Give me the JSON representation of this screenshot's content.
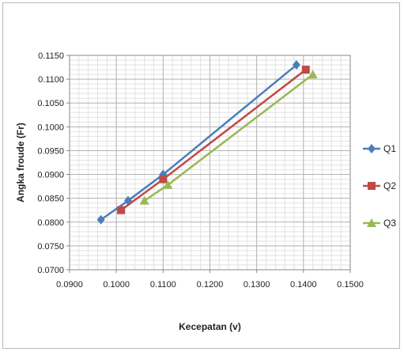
{
  "chart_data": {
    "type": "line",
    "title": "",
    "xlabel": "Kecepatan (v)",
    "ylabel": "Angka froude (Fr)",
    "xlim": [
      0.09,
      0.15
    ],
    "ylim": [
      0.07,
      0.115
    ],
    "x_ticks": [
      "0.0900",
      "0.1000",
      "0.1100",
      "0.1200",
      "0.1300",
      "0.1400",
      "0.1500"
    ],
    "y_ticks": [
      "0.0700",
      "0.0750",
      "0.0800",
      "0.0850",
      "0.0900",
      "0.0950",
      "0.1000",
      "0.1050",
      "0.1100",
      "0.1150"
    ],
    "grid": true,
    "legend_position": "right",
    "series": [
      {
        "name": "Q1",
        "color": "#4a7ebb",
        "marker": "diamond",
        "x": [
          0.0967,
          0.1025,
          0.11,
          0.1385
        ],
        "y": [
          0.0805,
          0.0845,
          0.09,
          0.113
        ]
      },
      {
        "name": "Q2",
        "color": "#be4b48",
        "marker": "square",
        "x": [
          0.101,
          0.11,
          0.1405
        ],
        "y": [
          0.0825,
          0.089,
          0.112
        ]
      },
      {
        "name": "Q3",
        "color": "#98b954",
        "marker": "triangle",
        "x": [
          0.106,
          0.111,
          0.142
        ],
        "y": [
          0.0845,
          0.0878,
          0.111
        ]
      }
    ]
  }
}
